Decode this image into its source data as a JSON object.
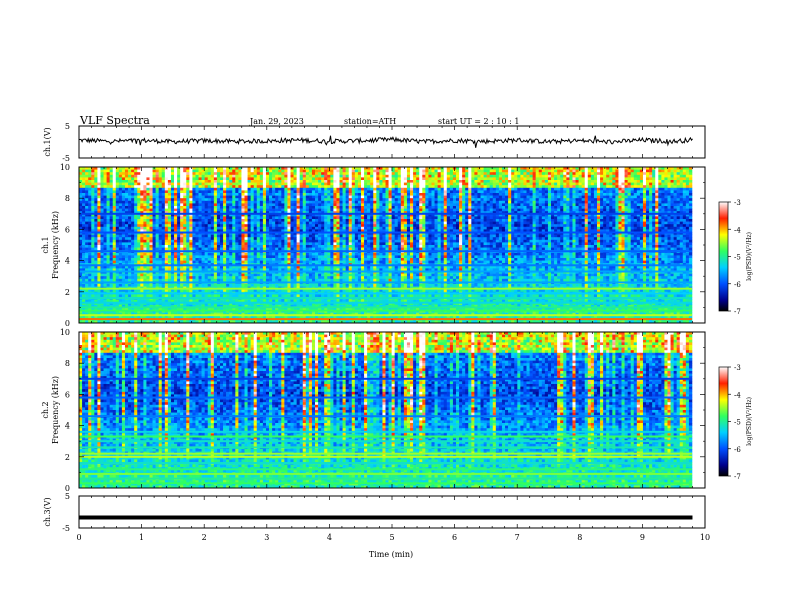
{
  "header": {
    "title": "VLF  Spectra",
    "date": "Jan.  29,  2023",
    "station": "station=ATH",
    "start": "start  UT  =   2  : 10 : 1"
  },
  "chart_data": [
    {
      "type": "line",
      "panel": "ch1-waveform",
      "ylabel": "ch.1(V)",
      "xlim": [
        0,
        10
      ],
      "ylim": [
        -5,
        5
      ],
      "y_ticks": [
        "5",
        "-5"
      ],
      "x": [
        0,
        0.5,
        1,
        1.5,
        2,
        2.5,
        3,
        3.5,
        4,
        4.5,
        5,
        5.5,
        6,
        6.5,
        7,
        7.5,
        8,
        8.5,
        9,
        9.5,
        9.8
      ],
      "values": [
        0.6,
        0.2,
        0.5,
        0.1,
        0.4,
        0.2,
        0.3,
        0.6,
        0.2,
        0.4,
        0.8,
        0.1,
        0.5,
        0.2,
        0.6,
        0.1,
        0.4,
        0.0,
        0.6,
        0.2,
        0.7
      ]
    },
    {
      "type": "heatmap",
      "panel": "ch1-spectrogram",
      "ylabel_lines": [
        "ch.1",
        "Frequency  (kHz)"
      ],
      "xlim": [
        0,
        10
      ],
      "ylim": [
        0,
        10
      ],
      "y_ticks": [
        "0",
        "2",
        "4",
        "6",
        "8",
        "10"
      ],
      "colorbar": {
        "label": "log(PSD)(V²/Hz)",
        "ticks": [
          "-3",
          "-4",
          "-5",
          "-6",
          "-7"
        ],
        "range": [
          -7,
          -3
        ]
      },
      "bands_khz": [
        0.25,
        0.5,
        0.8,
        1.0,
        1.3,
        1.6,
        1.9,
        2.2,
        2.6,
        3.3,
        3.7,
        4.6,
        5.8,
        7.0
      ],
      "band_level": [
        -3.8,
        -4.4,
        -4.8,
        -5.0,
        -5.3,
        -5.2,
        -5.4,
        -4.5,
        -5.6,
        -5.6,
        -5.8,
        -5.9,
        -6.0,
        -6.1
      ]
    },
    {
      "type": "heatmap",
      "panel": "ch2-spectrogram",
      "ylabel_lines": [
        "ch.2",
        "Frequency  (kHz)"
      ],
      "xlim": [
        0,
        10
      ],
      "ylim": [
        0,
        10
      ],
      "y_ticks": [
        "0",
        "2",
        "4",
        "6",
        "8",
        "10"
      ],
      "colorbar": {
        "label": "log(PSD)(V²/Hz)",
        "ticks": [
          "-3",
          "-4",
          "-5",
          "-6",
          "-7"
        ],
        "range": [
          -7,
          -3
        ]
      },
      "bands_khz": [
        0.3,
        0.6,
        0.9,
        1.2,
        1.6,
        2.0,
        2.2,
        2.6,
        3.0,
        3.3,
        3.6,
        4.6,
        5.8,
        7.0
      ],
      "band_level": [
        -4.8,
        -5.0,
        -4.6,
        -4.9,
        -5.2,
        -4.4,
        -4.5,
        -5.1,
        -5.2,
        -4.8,
        -5.3,
        -5.8,
        -5.9,
        -6.1
      ]
    },
    {
      "type": "line",
      "panel": "ch3-waveform",
      "ylabel": "ch.3(V)",
      "xlabel": "Time  (min)",
      "xlim": [
        0,
        10
      ],
      "ylim": [
        -5,
        5
      ],
      "y_ticks": [
        "5",
        "-5"
      ],
      "x_ticks": [
        "0",
        "1",
        "2",
        "3",
        "4",
        "5",
        "6",
        "7",
        "8",
        "9",
        "10"
      ],
      "x": [
        0,
        9.8
      ],
      "values": [
        -1.7,
        -1.7
      ]
    }
  ]
}
